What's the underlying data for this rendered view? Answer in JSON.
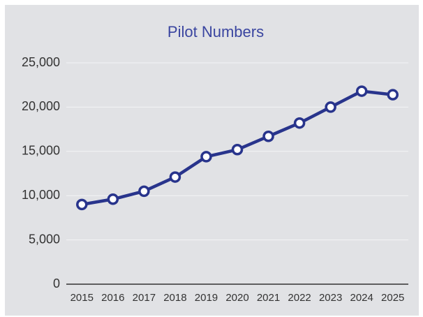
{
  "chart_data": {
    "type": "line",
    "title": "Pilot Numbers",
    "categories": [
      "2015",
      "2016",
      "2017",
      "2018",
      "2019",
      "2020",
      "2021",
      "2022",
      "2023",
      "2024",
      "2025"
    ],
    "series": [
      {
        "name": "Pilot Numbers",
        "color": "#28348c",
        "values": [
          9000,
          9600,
          10500,
          12100,
          14400,
          15200,
          16700,
          18200,
          20000,
          21800,
          21400
        ]
      }
    ],
    "ylim": [
      0,
      25000
    ],
    "yticks": [
      0,
      {
        "value": 5000,
        "label": "5,000"
      },
      {
        "value": 10000,
        "label": "10,000"
      },
      {
        "value": 15000,
        "label": "15,000"
      },
      {
        "value": 20000,
        "label": "20,000"
      },
      {
        "value": 25000,
        "label": "25,000"
      }
    ],
    "grid": true
  }
}
